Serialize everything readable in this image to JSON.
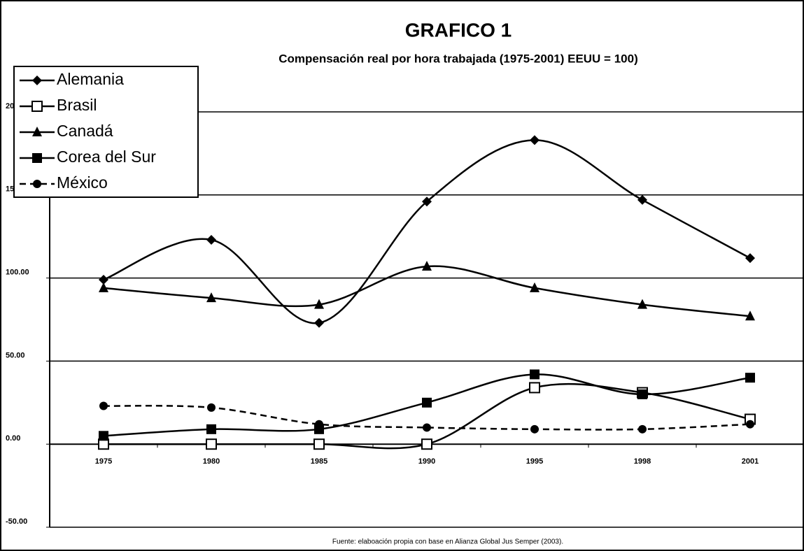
{
  "chart_data": {
    "type": "line",
    "title": "GRAFICO 1",
    "subtitle": "Compensación real por hora trabajada (1975-2001) EEUU = 100)",
    "source": "Fuente: elaboación propia con base en Alianza Global Jus Semper (2003).",
    "categories": [
      "1975",
      "1980",
      "1985",
      "1990",
      "1995",
      "1998",
      "2001"
    ],
    "series": [
      {
        "name": "Alemania",
        "color": "#000000",
        "marker": "diamond",
        "dash": false,
        "values": [
          99,
          123,
          73,
          146,
          183,
          147,
          112
        ]
      },
      {
        "name": "Brasil",
        "color": "#000000",
        "marker": "open-square",
        "dash": false,
        "values": [
          0,
          0,
          0,
          0,
          34,
          31,
          15
        ]
      },
      {
        "name": "Canadá",
        "color": "#000000",
        "marker": "triangle",
        "dash": false,
        "values": [
          94,
          88,
          84,
          107,
          94,
          84,
          77
        ]
      },
      {
        "name": "Corea del Sur",
        "color": "#000000",
        "marker": "square",
        "dash": false,
        "values": [
          5,
          9,
          9,
          25,
          42,
          30,
          40
        ]
      },
      {
        "name": "México",
        "color": "#000000",
        "marker": "circle",
        "dash": true,
        "values": [
          23,
          22,
          12,
          10,
          9,
          9,
          12
        ]
      }
    ],
    "ylim": [
      -50,
      200
    ],
    "yticks": [
      {
        "value": -50,
        "label": "-50.00"
      },
      {
        "value": 0,
        "label": "0.00"
      },
      {
        "value": 50,
        "label": "50.00"
      },
      {
        "value": 100,
        "label": "100.00"
      },
      {
        "value": 150,
        "label": "150.00"
      },
      {
        "value": 200,
        "label": "200.00"
      }
    ],
    "grid": true,
    "smooth": true,
    "legend": "top-left"
  }
}
